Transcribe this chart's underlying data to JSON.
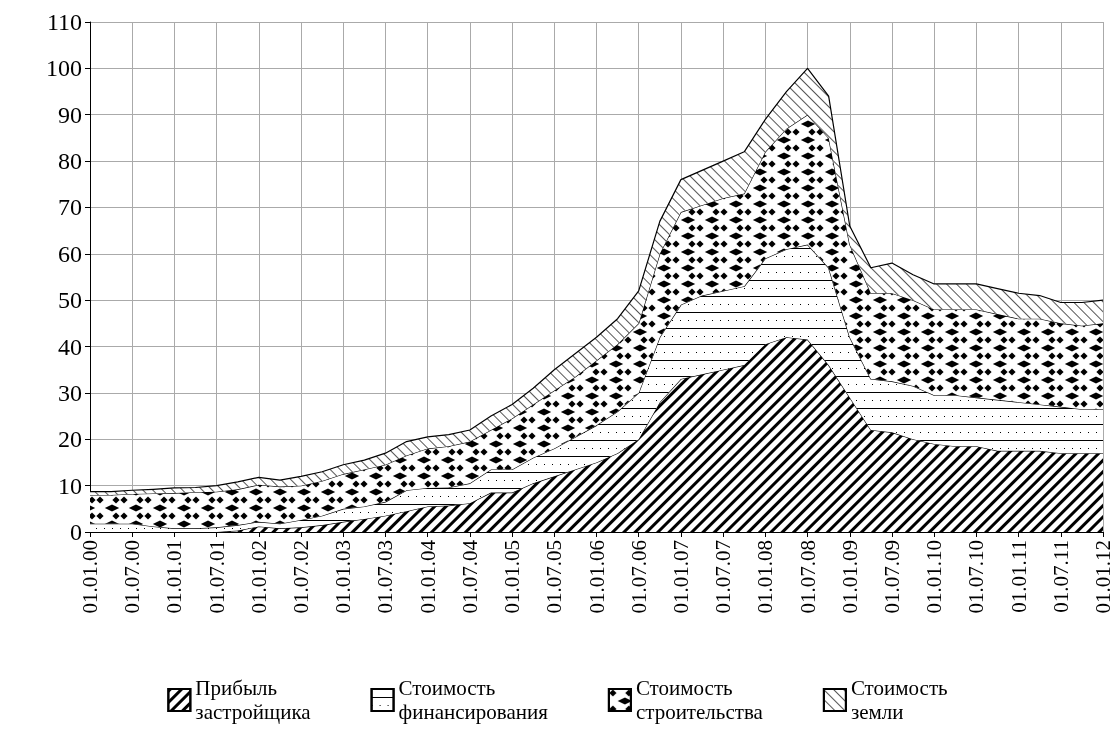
{
  "chart_data": {
    "type": "area",
    "stacked": true,
    "categories": [
      "01.01.00",
      null,
      "01.07.00",
      null,
      "01.01.01",
      null,
      "01.07.01",
      null,
      "01.01.02",
      null,
      "01.07.02",
      null,
      "01.01.03",
      null,
      "01.07.03",
      null,
      "01.01.04",
      null,
      "01.07.04",
      null,
      "01.01.05",
      null,
      "01.07.05",
      null,
      "01.01.06",
      null,
      "01.07.06",
      null,
      "01.01.07",
      null,
      "01.07.07",
      null,
      "01.01.08",
      null,
      "01.07.08",
      null,
      "01.01.09",
      null,
      "01.07.09",
      null,
      "01.01.10",
      null,
      "01.07.10",
      null,
      "01.01.11",
      null,
      "01.07.11",
      null,
      "01.01.12"
    ],
    "series": [
      {
        "name": "Прибыль застройщика",
        "color": "#000000",
        "values": [
          0,
          0,
          0,
          0,
          0,
          0,
          0,
          0.3,
          1.2,
          0.8,
          1,
          1.5,
          2.2,
          2.8,
          3.5,
          4.5,
          5.5,
          5.7,
          6.2,
          8.5,
          8.5,
          10.5,
          12,
          13.5,
          15,
          17,
          20,
          28,
          33,
          34,
          35,
          36,
          40.5,
          42,
          41.5,
          36,
          29,
          22,
          21.5,
          20,
          19,
          18.5,
          18.5,
          17.5,
          17.5,
          17.5,
          17,
          17,
          17
        ]
      },
      {
        "name": "Стоимость финансирования",
        "color": "#000000",
        "values": [
          1.8,
          1.8,
          1.8,
          1.2,
          0.8,
          0.8,
          1,
          1.2,
          1,
          1,
          1.6,
          2,
          2.8,
          2.7,
          3,
          4.5,
          4,
          3.9,
          4.3,
          5,
          5,
          5.5,
          6,
          7,
          8,
          9,
          10,
          14,
          16,
          17,
          17,
          17,
          18.5,
          19,
          20.5,
          21,
          13,
          11,
          11,
          11.5,
          10.5,
          11,
          10.5,
          11,
          10.5,
          10,
          10,
          9.5,
          9.5
        ]
      },
      {
        "name": "Стоимость строительства",
        "color": "#000000",
        "values": [
          6.2,
          6.2,
          6.4,
          7.1,
          7.6,
          7.8,
          7.7,
          7.7,
          8,
          8,
          7.4,
          7.5,
          7.5,
          8,
          8,
          7.5,
          8.5,
          8.9,
          9,
          8.5,
          11,
          11.5,
          12.5,
          13,
          14,
          14.5,
          15,
          18,
          20,
          19.5,
          20,
          20,
          23,
          26,
          28,
          28,
          20,
          18.5,
          19,
          18.5,
          18.5,
          18.5,
          19,
          18.5,
          18,
          18.5,
          18,
          18,
          18.5
        ]
      },
      {
        "name": "Стоимость земли",
        "color": "#555555",
        "values": [
          0.7,
          0.7,
          0.8,
          0.9,
          1.1,
          1,
          1.3,
          1.6,
          1.6,
          1.4,
          2,
          2,
          2,
          2,
          2.5,
          3,
          2.5,
          2.5,
          2.5,
          3,
          3,
          3.5,
          4.5,
          5,
          5,
          5.5,
          7,
          7,
          7,
          7.5,
          8,
          9,
          7,
          8,
          10,
          9,
          4,
          5.5,
          6.5,
          5.5,
          5.5,
          5.5,
          5.5,
          5.5,
          5.5,
          5,
          4.5,
          5,
          5
        ]
      }
    ],
    "ylim": [
      0,
      110
    ],
    "yticks": [
      0,
      10,
      20,
      30,
      40,
      50,
      60,
      70,
      80,
      90,
      100,
      110
    ],
    "grid": true,
    "legend": "bottom",
    "marker": "none"
  }
}
